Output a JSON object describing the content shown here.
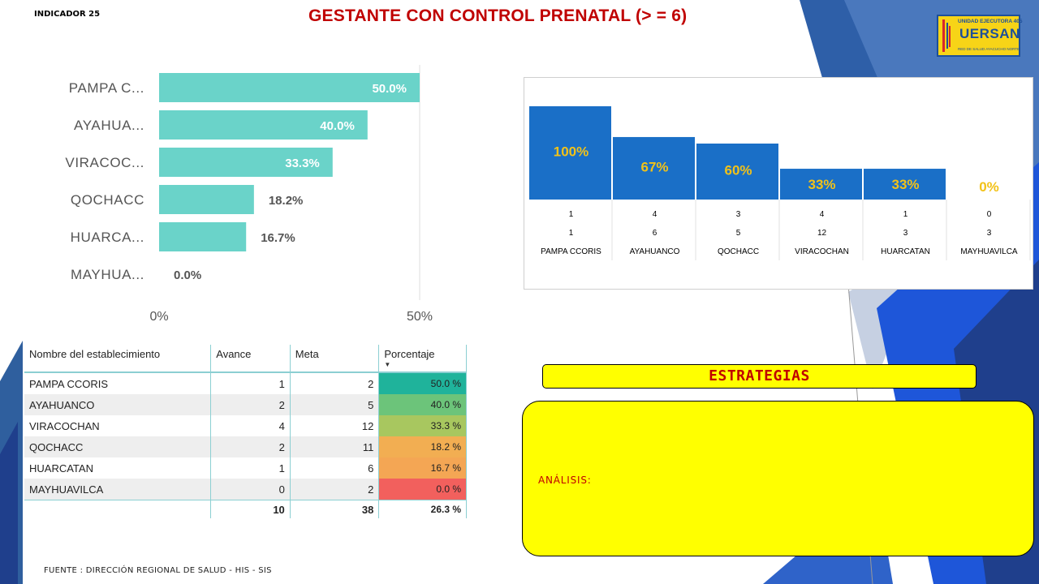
{
  "header": {
    "indicator": "INDICADOR 25",
    "title": "GESTANTE CON CONTROL PRENATAL (> = 6)"
  },
  "logo": {
    "top_text": "UNIDAD EJECUTORA 405",
    "name": "UERSAN",
    "subtitle": "RED DE SALUD AYACUCHO NORTE"
  },
  "chart_data": [
    {
      "type": "bar",
      "orientation": "horizontal",
      "categories": [
        "PAMPA C...",
        "AYAHUA...",
        "VIRACOC...",
        "QOCHACC",
        "HUARCA...",
        "MAYHUA..."
      ],
      "values": [
        50.0,
        40.0,
        33.3,
        18.2,
        16.7,
        0.0
      ],
      "data_labels": [
        "50.0%",
        "40.0%",
        "33.3%",
        "18.2%",
        "16.7%",
        "0.0%"
      ],
      "xlim": [
        0,
        50
      ],
      "x_ticks": [
        "0%",
        "50%"
      ],
      "color": "#6ad3c9",
      "grid": false
    },
    {
      "type": "bar",
      "categories": [
        "PAMPA CCORIS",
        "AYAHUANCO",
        "QOCHACC",
        "VIRACOCHAN",
        "HUARCATAN",
        "MAYHUAVILCA"
      ],
      "values": [
        100,
        67,
        60,
        33,
        33,
        0
      ],
      "data_labels": [
        "100%",
        "67%",
        "60%",
        "33%",
        "33%",
        "0%"
      ],
      "ylim": [
        0,
        100
      ],
      "avance_row": [
        "1",
        "4",
        "3",
        "4",
        "1",
        "0"
      ],
      "meta_row": [
        "1",
        "6",
        "5",
        "12",
        "3",
        "3"
      ],
      "bar_color": "#1a6fc7",
      "label_color": "#f2c218"
    }
  ],
  "table": {
    "headers": [
      "Nombre del establecimiento",
      "Avance",
      "Meta",
      "Porcentaje"
    ],
    "rows": [
      {
        "name": "PAMPA CCORIS",
        "avance": "1",
        "meta": "2",
        "pct": "50.0 %",
        "color": "#1fb39b"
      },
      {
        "name": "AYAHUANCO",
        "avance": "2",
        "meta": "5",
        "pct": "40.0 %",
        "color": "#6cc47a"
      },
      {
        "name": "VIRACOCHAN",
        "avance": "4",
        "meta": "12",
        "pct": "33.3 %",
        "color": "#a8c75f"
      },
      {
        "name": "QOCHACC",
        "avance": "2",
        "meta": "11",
        "pct": "18.2 %",
        "color": "#f2ae52"
      },
      {
        "name": "HUARCATAN",
        "avance": "1",
        "meta": "6",
        "pct": "16.7 %",
        "color": "#f4a654"
      },
      {
        "name": "MAYHUAVILCA",
        "avance": "0",
        "meta": "2",
        "pct": "0.0 %",
        "color": "#f2605d"
      }
    ],
    "total": {
      "avance": "10",
      "meta": "38",
      "pct": "26.3 %"
    }
  },
  "strategies": {
    "title": "ESTRATEGIAS",
    "analysis_label": "ANÁLISIS:"
  },
  "footer": {
    "source": "FUENTE : DIRECCIÓN REGIONAL DE SALUD - HIS - SIS"
  }
}
